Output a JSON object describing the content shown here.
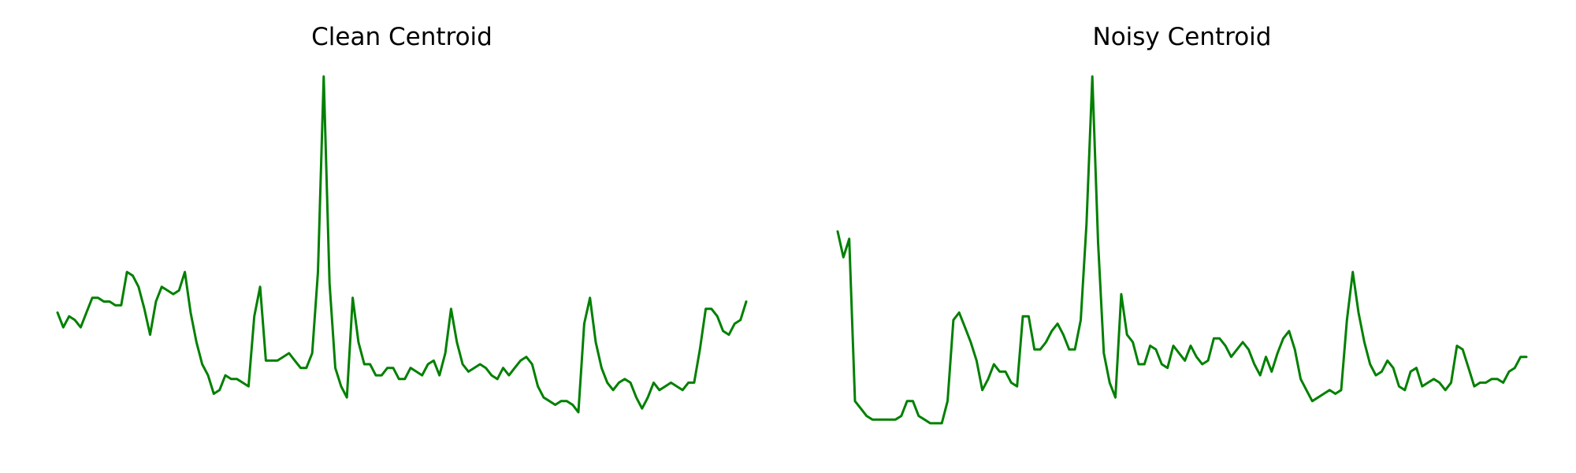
{
  "chart_data": [
    {
      "type": "line",
      "title": "Clean Centroid",
      "axes_visible": false,
      "grid": false,
      "color": "#008000",
      "ylim": [
        0,
        1
      ],
      "x": [
        0,
        1,
        2,
        3,
        4,
        5,
        6,
        7,
        8,
        9,
        10,
        11,
        12,
        13,
        14,
        15,
        16,
        17,
        18,
        19,
        20,
        21,
        22,
        23,
        24,
        25,
        26,
        27,
        28,
        29,
        30,
        31,
        32,
        33,
        34,
        35,
        36,
        37,
        38,
        39,
        40,
        41,
        42,
        43,
        44,
        45,
        46,
        47,
        48,
        49,
        50,
        51,
        52,
        53,
        54,
        55,
        56,
        57,
        58,
        59,
        60,
        61,
        62,
        63,
        64,
        65,
        66,
        67,
        68,
        69,
        70,
        71,
        72,
        73,
        74,
        75,
        76,
        77,
        78,
        79,
        80,
        81,
        82,
        83,
        84,
        85,
        86,
        87,
        88,
        89,
        90,
        91,
        92,
        93,
        94,
        95,
        96,
        97,
        98,
        99,
        100,
        101,
        102,
        103,
        104,
        105,
        106,
        107,
        108,
        109,
        110,
        111,
        112,
        113,
        114,
        115,
        116,
        117,
        118,
        119
      ],
      "values": [
        0.36,
        0.32,
        0.35,
        0.34,
        0.32,
        0.36,
        0.4,
        0.4,
        0.39,
        0.39,
        0.38,
        0.38,
        0.47,
        0.46,
        0.43,
        0.37,
        0.3,
        0.39,
        0.43,
        0.42,
        0.41,
        0.42,
        0.47,
        0.36,
        0.28,
        0.22,
        0.19,
        0.14,
        0.15,
        0.19,
        0.18,
        0.18,
        0.17,
        0.16,
        0.35,
        0.43,
        0.23,
        0.23,
        0.23,
        0.24,
        0.25,
        0.23,
        0.21,
        0.21,
        0.25,
        0.47,
        1.0,
        0.44,
        0.21,
        0.16,
        0.13,
        0.4,
        0.28,
        0.22,
        0.22,
        0.19,
        0.19,
        0.21,
        0.21,
        0.18,
        0.18,
        0.21,
        0.2,
        0.19,
        0.22,
        0.23,
        0.19,
        0.25,
        0.37,
        0.28,
        0.22,
        0.2,
        0.21,
        0.22,
        0.21,
        0.19,
        0.18,
        0.21,
        0.19,
        0.21,
        0.23,
        0.24,
        0.22,
        0.16,
        0.13,
        0.12,
        0.11,
        0.12,
        0.12,
        0.11,
        0.09,
        0.33,
        0.4,
        0.28,
        0.21,
        0.17,
        0.15,
        0.17,
        0.18,
        0.17,
        0.13,
        0.1,
        0.13,
        0.17,
        0.15,
        0.16,
        0.17,
        0.16,
        0.15,
        0.17,
        0.17,
        0.26,
        0.37,
        0.37,
        0.35,
        0.31,
        0.3,
        0.33,
        0.34,
        0.39
      ]
    },
    {
      "type": "line",
      "title": "Noisy Centroid",
      "axes_visible": false,
      "grid": false,
      "color": "#008000",
      "ylim": [
        0,
        1
      ],
      "x": [
        0,
        1,
        2,
        3,
        4,
        5,
        6,
        7,
        8,
        9,
        10,
        11,
        12,
        13,
        14,
        15,
        16,
        17,
        18,
        19,
        20,
        21,
        22,
        23,
        24,
        25,
        26,
        27,
        28,
        29,
        30,
        31,
        32,
        33,
        34,
        35,
        36,
        37,
        38,
        39,
        40,
        41,
        42,
        43,
        44,
        45,
        46,
        47,
        48,
        49,
        50,
        51,
        52,
        53,
        54,
        55,
        56,
        57,
        58,
        59,
        60,
        61,
        62,
        63,
        64,
        65,
        66,
        67,
        68,
        69,
        70,
        71,
        72,
        73,
        74,
        75,
        76,
        77,
        78,
        79,
        80,
        81,
        82,
        83,
        84,
        85,
        86,
        87,
        88,
        89,
        90,
        91,
        92,
        93,
        94,
        95,
        96,
        97,
        98,
        99,
        100,
        101,
        102,
        103,
        104,
        105,
        106,
        107,
        108,
        109,
        110,
        111,
        112,
        113,
        114,
        115,
        116,
        117,
        118,
        119
      ],
      "values": [
        0.58,
        0.51,
        0.56,
        0.12,
        0.1,
        0.08,
        0.07,
        0.07,
        0.07,
        0.07,
        0.07,
        0.08,
        0.12,
        0.12,
        0.08,
        0.07,
        0.06,
        0.06,
        0.06,
        0.12,
        0.34,
        0.36,
        0.32,
        0.28,
        0.23,
        0.15,
        0.18,
        0.22,
        0.2,
        0.2,
        0.17,
        0.16,
        0.35,
        0.35,
        0.26,
        0.26,
        0.28,
        0.31,
        0.33,
        0.3,
        0.26,
        0.26,
        0.34,
        0.6,
        1.0,
        0.55,
        0.25,
        0.17,
        0.13,
        0.41,
        0.3,
        0.28,
        0.22,
        0.22,
        0.27,
        0.26,
        0.22,
        0.21,
        0.27,
        0.25,
        0.23,
        0.27,
        0.24,
        0.22,
        0.23,
        0.29,
        0.29,
        0.27,
        0.24,
        0.26,
        0.28,
        0.26,
        0.22,
        0.19,
        0.24,
        0.2,
        0.25,
        0.29,
        0.31,
        0.26,
        0.18,
        0.15,
        0.12,
        0.13,
        0.14,
        0.15,
        0.14,
        0.15,
        0.34,
        0.47,
        0.36,
        0.28,
        0.22,
        0.19,
        0.2,
        0.23,
        0.21,
        0.16,
        0.15,
        0.2,
        0.21,
        0.16,
        0.17,
        0.18,
        0.17,
        0.15,
        0.17,
        0.27,
        0.26,
        0.21,
        0.16,
        0.17,
        0.17,
        0.18,
        0.18,
        0.17,
        0.2,
        0.21,
        0.24,
        0.24
      ]
    }
  ]
}
